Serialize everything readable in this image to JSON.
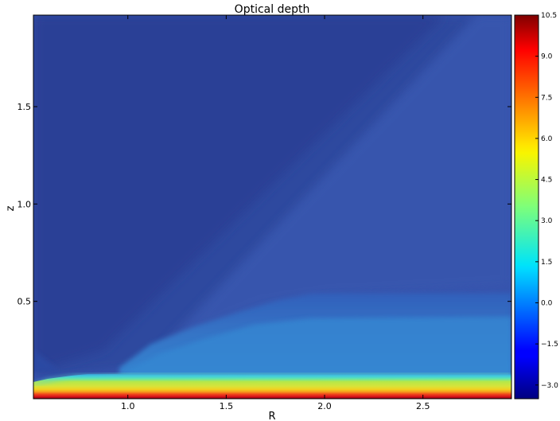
{
  "chart_data": {
    "type": "heatmap",
    "title": "Optical depth",
    "xlabel": "R",
    "ylabel": "z",
    "xlim": [
      0.52,
      2.95
    ],
    "ylim": [
      0.0,
      1.97
    ],
    "xticks": [
      {
        "value": 1.0,
        "label": "1.0"
      },
      {
        "value": 1.5,
        "label": "1.5"
      },
      {
        "value": 2.0,
        "label": "2.0"
      },
      {
        "value": 2.5,
        "label": "2.5"
      }
    ],
    "yticks": [
      {
        "value": 0.5,
        "label": "0.5"
      },
      {
        "value": 1.0,
        "label": "1.0"
      },
      {
        "value": 1.5,
        "label": "1.5"
      }
    ],
    "colorbar": {
      "colormap": "jet",
      "min": -3.5,
      "max": 10.5,
      "ticks": [
        {
          "value": -3.0,
          "label": "−3.0"
        },
        {
          "value": -1.5,
          "label": "−1.5"
        },
        {
          "value": 0.0,
          "label": "0.0"
        },
        {
          "value": 1.5,
          "label": "1.5"
        },
        {
          "value": 3.0,
          "label": "3.0"
        },
        {
          "value": 4.5,
          "label": "4.5"
        },
        {
          "value": 6.0,
          "label": "6.0"
        },
        {
          "value": 7.5,
          "label": "7.5"
        },
        {
          "value": 9.0,
          "label": "9.0"
        },
        {
          "value": 10.5,
          "label": "10.5"
        }
      ]
    },
    "grid": false,
    "colors": {
      "axis": "#000000",
      "background": "#ffffff"
    }
  }
}
